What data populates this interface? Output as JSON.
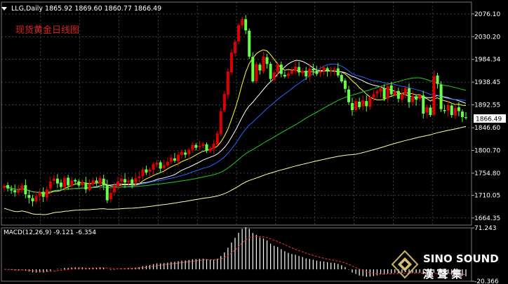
{
  "header": {
    "symbol_line": "LLG,Daily  1865.92 1869.60 1860.77 1866.49",
    "chart_title": "现货黄金日线图"
  },
  "current_price_label": "1866.49",
  "watermark": {
    "brand_top": "SINO SOUND",
    "brand_bottom": "漢  聲  集"
  },
  "icons": {
    "collapse": "triangle-down-icon",
    "logo": "diamond-logo-icon"
  },
  "colors": {
    "background": "#000000",
    "grid": "#5a6a6a",
    "bull_candle": "#dd0000",
    "bear_candle": "#66ff44",
    "ma_yellow": "#ffff33",
    "ma_blue": "#2266ff",
    "ma_green": "#22cc22",
    "ma_white": "#ffffff",
    "ma_pale": "#ffffaa",
    "macd_hist": "#ffffff",
    "macd_signal": "#ff3333",
    "text": "#ffffff",
    "title_red": "#dd2222"
  },
  "chart_data": [
    {
      "type": "candlestick",
      "title": "现货黄金日线图",
      "symbol": "LLG",
      "timeframe": "Daily",
      "last": {
        "open": 1865.92,
        "high": 1869.6,
        "low": 1860.77,
        "close": 1866.49
      },
      "ylim": [
        1650,
        2100
      ],
      "y_ticks": [
        2076.1,
        2030.2,
        1984.34,
        1938.45,
        1892.55,
        1846.6,
        1800.7,
        1754.8,
        1710.05,
        1664.35
      ],
      "grid": true,
      "closes": [
        1729,
        1724,
        1720,
        1716,
        1721,
        1730,
        1712,
        1705,
        1698,
        1708,
        1716,
        1707,
        1722,
        1738,
        1744,
        1734,
        1727,
        1745,
        1730,
        1740,
        1738,
        1730,
        1736,
        1722,
        1733,
        1740,
        1736,
        1745,
        1730,
        1700,
        1715,
        1729,
        1738,
        1744,
        1736,
        1740,
        1734,
        1745,
        1748,
        1762,
        1756,
        1762,
        1773,
        1776,
        1764,
        1771,
        1778,
        1786,
        1780,
        1792,
        1798,
        1792,
        1802,
        1812,
        1806,
        1810,
        1814,
        1800,
        1805,
        1814,
        1835,
        1880,
        1915,
        1960,
        1998,
        2020,
        2054,
        2066,
        2043,
        1990,
        1940,
        1975,
        1962,
        1990,
        1975,
        1945,
        1958,
        1975,
        1955,
        1950,
        1956,
        1962,
        1970,
        1958,
        1962,
        1950,
        1966,
        1962,
        1955,
        1960,
        1968,
        1960,
        1962,
        1965,
        1952,
        1940,
        1925,
        1898,
        1882,
        1900,
        1888,
        1902,
        1890,
        1908,
        1914,
        1920,
        1926,
        1905,
        1930,
        1914,
        1920,
        1905,
        1915,
        1926,
        1898,
        1910,
        1903,
        1912,
        1875,
        1888,
        1872,
        1950,
        1935,
        1884,
        1880,
        1892,
        1872,
        1886,
        1880,
        1868,
        1866
      ]
    },
    {
      "type": "line",
      "name": "MACD(12,26,9)",
      "macd": -9.121,
      "signal": -6.354,
      "ylim": [
        -20.366,
        71.243
      ],
      "y_ticks": [
        71.243,
        -20.366
      ]
    }
  ]
}
